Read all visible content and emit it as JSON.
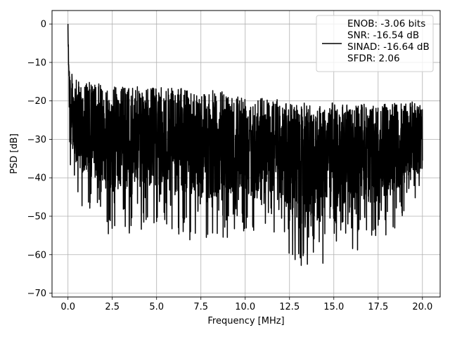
{
  "chart_data": {
    "type": "line",
    "xlabel": "Frequency [MHz]",
    "ylabel": "PSD [dB]",
    "xlim": [
      -0.9,
      21.0
    ],
    "ylim": [
      -71,
      3.5
    ],
    "xticks": [
      0.0,
      2.5,
      5.0,
      7.5,
      10.0,
      12.5,
      15.0,
      17.5,
      20.0
    ],
    "xtick_labels": [
      "0.0",
      "2.5",
      "5.0",
      "7.5",
      "10.0",
      "12.5",
      "15.0",
      "17.5",
      "20.0"
    ],
    "yticks": [
      0,
      -10,
      -20,
      -30,
      -40,
      -50,
      -60,
      -70
    ],
    "ytick_labels": [
      "0",
      "−10",
      "−20",
      "−30",
      "−40",
      "−50",
      "−60",
      "−70"
    ],
    "grid": true,
    "legend_position": "top-right",
    "series": [
      {
        "color": "#000000",
        "x_range": [
          0,
          20
        ],
        "spike": {
          "x": 0.0,
          "y": 0.0
        },
        "envelope": {
          "x": [
            0.0,
            0.1,
            0.3,
            0.6,
            1.0,
            2.5,
            5.0,
            7.5,
            10.0,
            11.5,
            12.5,
            13.5,
            15.0,
            17.5,
            20.0
          ],
          "max": [
            0.0,
            -11.0,
            -14.0,
            -15.0,
            -15.0,
            -16.0,
            -16.5,
            -17.0,
            -18.0,
            -19.0,
            -20.5,
            -20.5,
            -20.5,
            -21.0,
            -20.0
          ],
          "min": [
            -3.0,
            -41.0,
            -43.0,
            -47.0,
            -49.0,
            -56.0,
            -53.0,
            -58.0,
            -54.0,
            -55.0,
            -61.0,
            -67.5,
            -60.0,
            -58.0,
            -46.0
          ]
        }
      }
    ],
    "legend_lines": [
      "ENOB: -3.06 bits",
      "SNR: -16.54 dB",
      "SINAD: -16.64 dB",
      "SFDR: 2.06"
    ]
  }
}
